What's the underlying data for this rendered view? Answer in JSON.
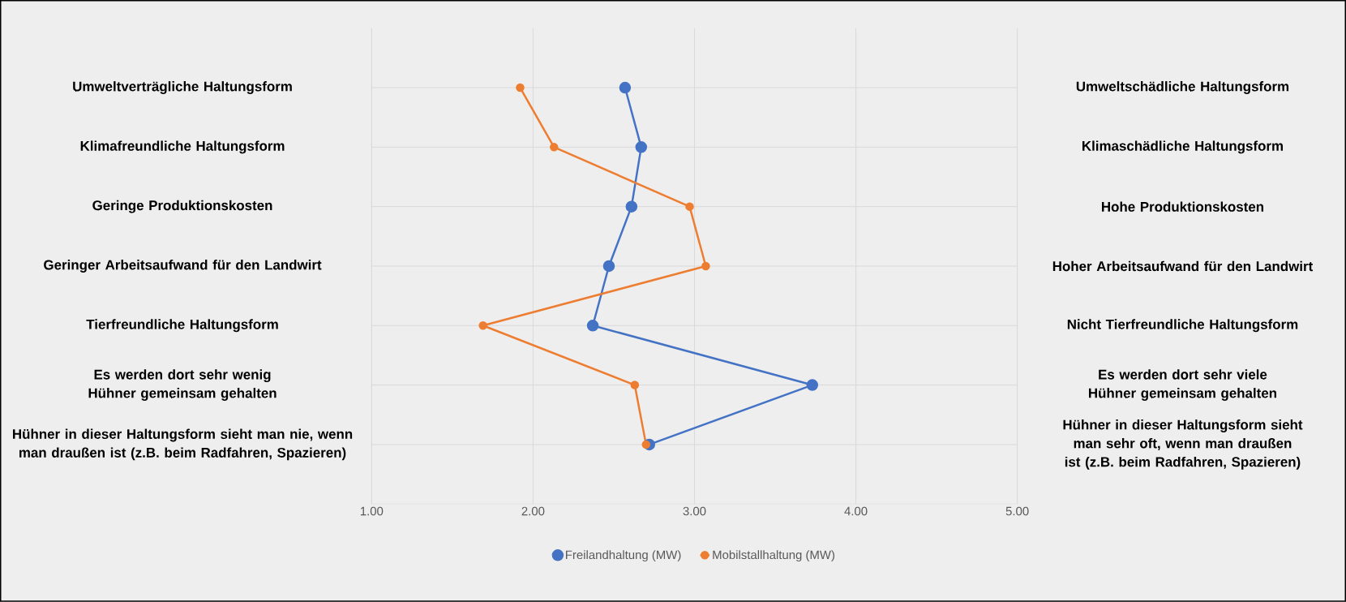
{
  "chart_data": {
    "type": "line",
    "orientation": "horizontal",
    "categories": [
      "Umweltverträgliche Haltungsform",
      "Klimafreundliche Haltungsform",
      "Geringe Produktionskosten",
      "Geringer Arbeitsaufwand für den Landwirt",
      "Tierfreundliche Haltungsform",
      "Es werden dort sehr wenig Hühner gemeinsam gehalten",
      "Hühner in dieser Haltungsform sieht man nie, wenn man draußen ist (z.B. beim Radfahren, Spazieren)"
    ],
    "y2_categories": [
      "Umweltschädliche Haltungsform",
      "Klimaschädliche Haltungsform",
      "Hohe Produktionskosten",
      "Hoher Arbeitsaufwand für den Landwirt",
      "Nicht Tierfreundliche Haltungsform",
      "Es werden dort sehr viele Hühner gemeinsam gehalten",
      "Hühner in dieser Haltungsform sieht man sehr oft, wenn man draußen ist (z.B. beim Radfahren, Spazieren)"
    ],
    "series": [
      {
        "name": "Freilandhaltung (MW)",
        "color": "#4472c4",
        "values": [
          2.57,
          2.67,
          2.61,
          2.47,
          2.37,
          3.73,
          2.72
        ]
      },
      {
        "name": "Mobilstallhaltung (MW)",
        "color": "#ed7d31",
        "values": [
          1.92,
          2.13,
          2.97,
          3.07,
          1.69,
          2.63,
          2.7
        ]
      }
    ],
    "xlim": [
      1,
      5
    ],
    "xticks": [
      {
        "value": 1,
        "label": "1.00"
      },
      {
        "value": 2,
        "label": "2.00"
      },
      {
        "value": 3,
        "label": "3.00"
      },
      {
        "value": 4,
        "label": "4.00"
      },
      {
        "value": 5,
        "label": "5.00"
      }
    ],
    "grid": true,
    "legend": "bottom",
    "marker": "circle",
    "line_style": "solid"
  }
}
